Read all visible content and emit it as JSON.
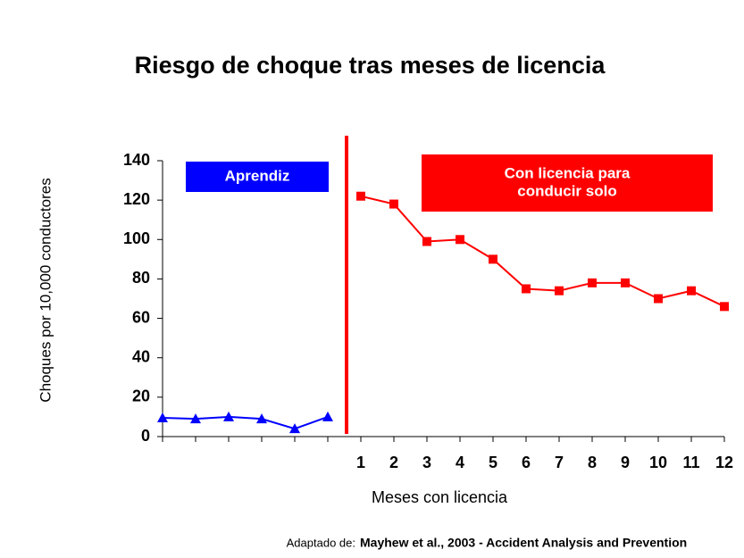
{
  "chart_data": {
    "type": "line",
    "title": "Riesgo de choque tras meses de licencia",
    "y_label": "Choques por 10,000 conductores",
    "x_label": "Meses con licencia",
    "categories": [
      null,
      null,
      null,
      null,
      null,
      null,
      "1",
      "2",
      "3",
      "4",
      "5",
      "6",
      "7",
      "8",
      "9",
      "10",
      "11",
      "12"
    ],
    "series": [
      {
        "color": "#0000ff",
        "marker": "triangle",
        "values": [
          9.5,
          9,
          10,
          9,
          4,
          10,
          null,
          null,
          null,
          null,
          null,
          null,
          null,
          null,
          null,
          null,
          null,
          null
        ]
      },
      {
        "color": "#ff0000",
        "marker": "square",
        "values": [
          null,
          null,
          null,
          null,
          null,
          null,
          122,
          118,
          99,
          100,
          90,
          75,
          74,
          78,
          78,
          70,
          74,
          66
        ]
      }
    ],
    "ylim": [
      0,
      140
    ],
    "yticks": [
      0,
      20,
      40,
      60,
      80,
      100,
      120,
      140
    ],
    "annotations": [
      {
        "color": "#0000ff",
        "lines": [
          "Aprendiz"
        ]
      },
      {
        "color": "#ff0000",
        "lines": [
          "Con licencia para",
          "conducir solo"
        ]
      }
    ],
    "source": {
      "prefix": "Adaptado de:",
      "text": "Mayhew et al., 2003 - Accident Analysis and Prevention"
    }
  }
}
